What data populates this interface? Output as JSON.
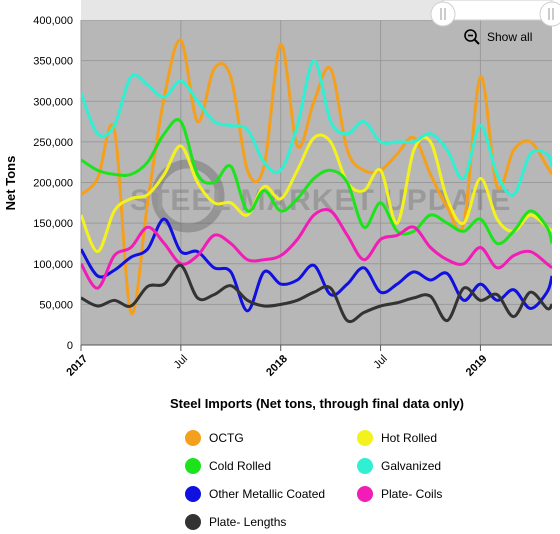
{
  "chart_data": {
    "type": "line",
    "ylabel": "Net Tons",
    "xlabel": "Steel Imports (Net tons, through final data only)",
    "watermark": "STEEL MARKET UPDATE",
    "ylim": [
      0,
      400000
    ],
    "yticks": [
      "0",
      "50,000",
      "100,000",
      "150,000",
      "200,000",
      "250,000",
      "300,000",
      "350,000",
      "400,000"
    ],
    "xticks": [
      {
        "label": "2017",
        "x": 0,
        "major": true
      },
      {
        "label": "Jul",
        "x": 6,
        "major": false
      },
      {
        "label": "2018",
        "x": 12,
        "major": true
      },
      {
        "label": "Jul",
        "x": 18,
        "major": false
      },
      {
        "label": "2019",
        "x": 24,
        "major": true
      }
    ],
    "x_range": [
      0,
      28.3
    ],
    "grid": true,
    "legend_position": "bottom",
    "show_all_label": "Show all",
    "series": [
      {
        "name": "OCTG",
        "color": "#f4a01c",
        "x": [
          0,
          1,
          2,
          3,
          4,
          5,
          6,
          7,
          8,
          9,
          10,
          11,
          12,
          13,
          14,
          15,
          16,
          17,
          18,
          19,
          20,
          21,
          22,
          23,
          24,
          25,
          26,
          27,
          28,
          28.3
        ],
        "values": [
          185000,
          205000,
          265000,
          40000,
          175000,
          305000,
          375000,
          275000,
          340000,
          330000,
          215000,
          220000,
          370000,
          245000,
          300000,
          340000,
          240000,
          215000,
          215000,
          235000,
          255000,
          210000,
          170000,
          150000,
          330000,
          195000,
          240000,
          250000,
          220000,
          210000
        ]
      },
      {
        "name": "Hot Rolled",
        "color": "#f4f21c",
        "x": [
          0,
          1,
          2,
          3,
          4,
          5,
          6,
          7,
          8,
          9,
          10,
          11,
          12,
          13,
          14,
          15,
          16,
          17,
          18,
          19,
          20,
          21,
          22,
          23,
          24,
          25,
          26,
          27,
          28,
          28.3
        ],
        "values": [
          160000,
          115000,
          165000,
          180000,
          185000,
          210000,
          245000,
          200000,
          175000,
          175000,
          160000,
          195000,
          180000,
          215000,
          255000,
          250000,
          200000,
          190000,
          215000,
          150000,
          240000,
          250000,
          180000,
          150000,
          205000,
          155000,
          140000,
          160000,
          145000,
          140000
        ]
      },
      {
        "name": "Cold Rolled",
        "color": "#1de31d",
        "x": [
          0,
          1,
          2,
          3,
          4,
          5,
          6,
          7,
          8,
          9,
          10,
          11,
          12,
          13,
          14,
          15,
          16,
          17,
          18,
          19,
          20,
          21,
          22,
          23,
          24,
          25,
          26,
          27,
          28,
          28.3
        ],
        "values": [
          228000,
          215000,
          210000,
          210000,
          225000,
          260000,
          275000,
          210000,
          200000,
          220000,
          165000,
          190000,
          165000,
          180000,
          205000,
          215000,
          200000,
          145000,
          175000,
          140000,
          140000,
          160000,
          150000,
          140000,
          155000,
          125000,
          140000,
          165000,
          145000,
          125000
        ]
      },
      {
        "name": "Galvanized",
        "color": "#2ff0d2",
        "x": [
          0,
          1,
          2,
          3,
          4,
          5,
          6,
          7,
          8,
          9,
          10,
          11,
          12,
          13,
          14,
          15,
          16,
          17,
          18,
          19,
          20,
          21,
          22,
          23,
          24,
          25,
          26,
          27,
          28,
          28.3
        ],
        "values": [
          310000,
          260000,
          270000,
          330000,
          320000,
          305000,
          325000,
          300000,
          275000,
          270000,
          265000,
          225000,
          215000,
          270000,
          350000,
          275000,
          260000,
          275000,
          250000,
          250000,
          250000,
          260000,
          240000,
          205000,
          270000,
          210000,
          185000,
          235000,
          235000,
          220000
        ]
      },
      {
        "name": "Other Metallic Coated",
        "color": "#1010e0",
        "x": [
          0,
          1,
          2,
          3,
          4,
          5,
          6,
          7,
          8,
          9,
          10,
          11,
          12,
          13,
          14,
          15,
          16,
          17,
          18,
          19,
          20,
          21,
          22,
          23,
          24,
          25,
          26,
          27,
          28,
          28.3
        ],
        "values": [
          118000,
          85000,
          92000,
          108000,
          118000,
          155000,
          115000,
          115000,
          95000,
          90000,
          42000,
          90000,
          75000,
          80000,
          98000,
          62000,
          75000,
          95000,
          65000,
          75000,
          90000,
          80000,
          88000,
          55000,
          75000,
          55000,
          68000,
          45000,
          65000,
          85000
        ]
      },
      {
        "name": "Plate- Coils",
        "color": "#f21cb6",
        "x": [
          0,
          1,
          2,
          3,
          4,
          5,
          6,
          7,
          8,
          9,
          10,
          11,
          12,
          13,
          14,
          15,
          16,
          17,
          18,
          19,
          20,
          21,
          22,
          23,
          24,
          25,
          26,
          27,
          28,
          28.3
        ],
        "values": [
          100000,
          70000,
          110000,
          120000,
          145000,
          125000,
          100000,
          110000,
          135000,
          125000,
          105000,
          105000,
          110000,
          130000,
          160000,
          165000,
          135000,
          105000,
          130000,
          135000,
          145000,
          120000,
          105000,
          100000,
          120000,
          95000,
          110000,
          115000,
          100000,
          95000
        ]
      },
      {
        "name": "Plate- Lengths",
        "color": "#333333",
        "x": [
          0,
          1,
          2,
          3,
          4,
          5,
          6,
          7,
          8,
          9,
          10,
          11,
          12,
          13,
          14,
          15,
          16,
          17,
          18,
          19,
          20,
          21,
          22,
          23,
          24,
          25,
          26,
          27,
          28,
          28.3
        ],
        "values": [
          58000,
          48000,
          55000,
          48000,
          72000,
          75000,
          98000,
          58000,
          62000,
          73000,
          55000,
          48000,
          50000,
          55000,
          65000,
          70000,
          30000,
          40000,
          48000,
          52000,
          58000,
          60000,
          30000,
          70000,
          55000,
          62000,
          35000,
          65000,
          45000,
          50000
        ]
      }
    ]
  },
  "legend": [
    {
      "name": "OCTG",
      "color": "#f4a01c"
    },
    {
      "name": "Hot Rolled",
      "color": "#f4f21c"
    },
    {
      "name": "Cold Rolled",
      "color": "#1de31d"
    },
    {
      "name": "Galvanized",
      "color": "#2ff0d2"
    },
    {
      "name": "Other Metallic Coated",
      "color": "#1010e0"
    },
    {
      "name": "Plate- Coils",
      "color": "#f21cb6"
    },
    {
      "name": "Plate- Lengths",
      "color": "#333333"
    }
  ]
}
